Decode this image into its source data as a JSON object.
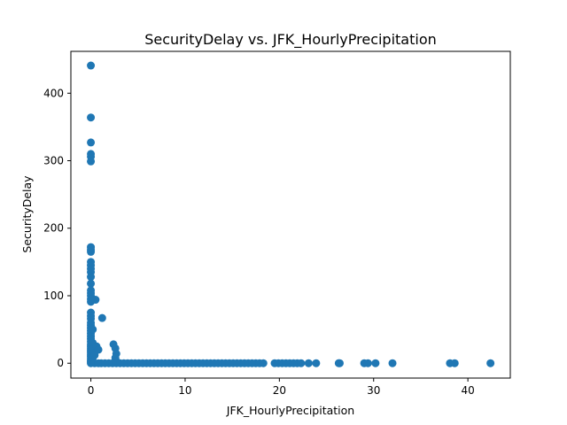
{
  "chart_data": {
    "type": "scatter",
    "title": "SecurityDelay vs. JFK_HourlyPrecipitation",
    "xlabel": "JFK_HourlyPrecipitation",
    "ylabel": "SecurityDelay",
    "xlim": [
      -2.12,
      44.5
    ],
    "ylim": [
      -22,
      462
    ],
    "xticks": [
      0,
      10,
      20,
      30,
      40
    ],
    "yticks": [
      0,
      100,
      200,
      300,
      400
    ],
    "grid": false,
    "color": "#1f77b4",
    "points": [
      {
        "x": 0,
        "y": 441
      },
      {
        "x": 0,
        "y": 364
      },
      {
        "x": 0,
        "y": 327
      },
      {
        "x": 0,
        "y": 310
      },
      {
        "x": 0,
        "y": 306
      },
      {
        "x": 0,
        "y": 299
      },
      {
        "x": 0,
        "y": 172
      },
      {
        "x": 0,
        "y": 168
      },
      {
        "x": 0,
        "y": 165
      },
      {
        "x": 0,
        "y": 150
      },
      {
        "x": 0,
        "y": 145
      },
      {
        "x": 0,
        "y": 140
      },
      {
        "x": 0,
        "y": 135
      },
      {
        "x": 0,
        "y": 128
      },
      {
        "x": 0,
        "y": 118
      },
      {
        "x": 0,
        "y": 108
      },
      {
        "x": 0,
        "y": 104
      },
      {
        "x": 0,
        "y": 100
      },
      {
        "x": 0,
        "y": 95
      },
      {
        "x": 0,
        "y": 91
      },
      {
        "x": 0,
        "y": 75
      },
      {
        "x": 0,
        "y": 70
      },
      {
        "x": 0,
        "y": 66
      },
      {
        "x": 0,
        "y": 60
      },
      {
        "x": 0,
        "y": 56
      },
      {
        "x": 0,
        "y": 52
      },
      {
        "x": 0,
        "y": 48
      },
      {
        "x": 0,
        "y": 44
      },
      {
        "x": 0,
        "y": 40
      },
      {
        "x": 0,
        "y": 36
      },
      {
        "x": 0,
        "y": 32
      },
      {
        "x": 0,
        "y": 28
      },
      {
        "x": 0,
        "y": 25
      },
      {
        "x": 0,
        "y": 22
      },
      {
        "x": 0,
        "y": 19
      },
      {
        "x": 0,
        "y": 16
      },
      {
        "x": 0,
        "y": 13
      },
      {
        "x": 0,
        "y": 10
      },
      {
        "x": 0,
        "y": 7
      },
      {
        "x": 0,
        "y": 4
      },
      {
        "x": 0,
        "y": 2
      },
      {
        "x": 0,
        "y": 0
      },
      {
        "x": 0.2,
        "y": 50
      },
      {
        "x": 0.2,
        "y": 30
      },
      {
        "x": 0.1,
        "y": 20
      },
      {
        "x": 0.3,
        "y": 15
      },
      {
        "x": 0.2,
        "y": 8
      },
      {
        "x": 0.5,
        "y": 94
      },
      {
        "x": 1.2,
        "y": 67
      },
      {
        "x": 0.6,
        "y": 25
      },
      {
        "x": 0.8,
        "y": 20
      },
      {
        "x": 0.4,
        "y": 12
      },
      {
        "x": 2.4,
        "y": 28
      },
      {
        "x": 2.6,
        "y": 22
      },
      {
        "x": 2.7,
        "y": 14
      },
      {
        "x": 2.6,
        "y": 8
      },
      {
        "x": 2.7,
        "y": 3
      },
      {
        "x": 0.4,
        "y": 0
      },
      {
        "x": 0.8,
        "y": 0
      },
      {
        "x": 1.1,
        "y": 0
      },
      {
        "x": 1.5,
        "y": 0
      },
      {
        "x": 1.9,
        "y": 0
      },
      {
        "x": 2.3,
        "y": 0
      },
      {
        "x": 2.7,
        "y": 0
      },
      {
        "x": 3.1,
        "y": 0
      },
      {
        "x": 3.5,
        "y": 0
      },
      {
        "x": 3.9,
        "y": 0
      },
      {
        "x": 4.3,
        "y": 0
      },
      {
        "x": 4.7,
        "y": 0
      },
      {
        "x": 5.1,
        "y": 0
      },
      {
        "x": 5.5,
        "y": 0
      },
      {
        "x": 5.9,
        "y": 0
      },
      {
        "x": 6.3,
        "y": 0
      },
      {
        "x": 6.7,
        "y": 0
      },
      {
        "x": 7.1,
        "y": 0
      },
      {
        "x": 7.5,
        "y": 0
      },
      {
        "x": 7.9,
        "y": 0
      },
      {
        "x": 8.3,
        "y": 0
      },
      {
        "x": 8.7,
        "y": 0
      },
      {
        "x": 9.1,
        "y": 0
      },
      {
        "x": 9.5,
        "y": 0
      },
      {
        "x": 9.9,
        "y": 0
      },
      {
        "x": 10.3,
        "y": 0
      },
      {
        "x": 10.7,
        "y": 0
      },
      {
        "x": 11.1,
        "y": 0
      },
      {
        "x": 11.5,
        "y": 0
      },
      {
        "x": 11.9,
        "y": 0
      },
      {
        "x": 12.3,
        "y": 0
      },
      {
        "x": 12.7,
        "y": 0
      },
      {
        "x": 13.1,
        "y": 0
      },
      {
        "x": 13.5,
        "y": 0
      },
      {
        "x": 13.9,
        "y": 0
      },
      {
        "x": 14.3,
        "y": 0
      },
      {
        "x": 14.7,
        "y": 0
      },
      {
        "x": 15.1,
        "y": 0
      },
      {
        "x": 15.5,
        "y": 0
      },
      {
        "x": 15.9,
        "y": 0
      },
      {
        "x": 16.3,
        "y": 0
      },
      {
        "x": 16.7,
        "y": 0
      },
      {
        "x": 17.1,
        "y": 0
      },
      {
        "x": 17.5,
        "y": 0
      },
      {
        "x": 17.9,
        "y": 0
      },
      {
        "x": 18.3,
        "y": 0
      },
      {
        "x": 19.5,
        "y": 0
      },
      {
        "x": 19.9,
        "y": 0
      },
      {
        "x": 20.3,
        "y": 0
      },
      {
        "x": 20.7,
        "y": 0
      },
      {
        "x": 21.1,
        "y": 0
      },
      {
        "x": 21.5,
        "y": 0
      },
      {
        "x": 21.9,
        "y": 0
      },
      {
        "x": 22.3,
        "y": 0
      },
      {
        "x": 23.1,
        "y": 0
      },
      {
        "x": 23.9,
        "y": 0
      },
      {
        "x": 26.3,
        "y": 0
      },
      {
        "x": 26.4,
        "y": 0
      },
      {
        "x": 29.0,
        "y": 0
      },
      {
        "x": 29.4,
        "y": 0
      },
      {
        "x": 30.2,
        "y": 0
      },
      {
        "x": 32.0,
        "y": 0
      },
      {
        "x": 38.1,
        "y": 0
      },
      {
        "x": 38.6,
        "y": 0
      },
      {
        "x": 42.4,
        "y": 0
      }
    ]
  }
}
